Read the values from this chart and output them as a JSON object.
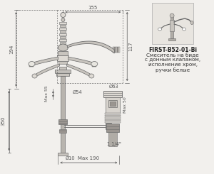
{
  "bg_color": "#f2f0ed",
  "line_color": "#6a6a6a",
  "dim_color": "#555555",
  "faucet_color": "#c8c4be",
  "faucet_dark": "#9a9590",
  "faucet_light": "#dedad4",
  "title_text": "FIRST-B52-01-Bi",
  "desc_line1": "Смеситель на биде",
  "desc_line2": "с донным клапаном,",
  "desc_line3": "исполнение хром,",
  "desc_line4": "ручки белые",
  "dim_155": "155",
  "dim_194": "194",
  "dim_117": "117",
  "dim_55": "Max 55",
  "dim_350": "350",
  "dim_54": "Ø54",
  "dim_63": "Ø63",
  "dim_50": "Max 50",
  "dim_10": "Ø10",
  "dim_190": "Max 190",
  "dim_114": "1 1/4\""
}
